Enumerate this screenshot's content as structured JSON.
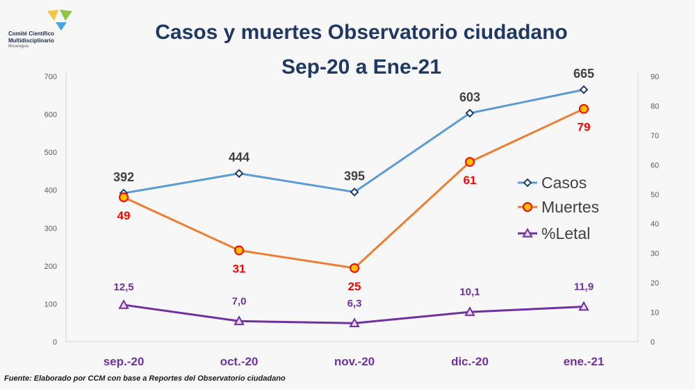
{
  "logo": {
    "line1": "Comité Científico",
    "line2": "Multidisciplinario",
    "line3": "Nicaragua"
  },
  "source_note": "Fuente:  Elaborado por CCM con base a Reportes del Observatorio ciudadano",
  "colors": {
    "casos": "#5b9bd5",
    "casos_marker": "#1f3864",
    "muertes": "#ed7d31",
    "muertes_marker_fill": "#ffc000",
    "muertes_marker_stroke": "#ff0000",
    "letal": "#7030a0",
    "muertes_label": "#ff0000",
    "letal_label": "#7030a0",
    "title": "#1f3864",
    "xtick": "#7030a0"
  },
  "chart_data": {
    "type": "line",
    "title_line1": "Casos y muertes Observatorio ciudadano",
    "title_line2": "Sep-20 a Ene-21",
    "categories": [
      "sep.-20",
      "oct.-20",
      "nov.-20",
      "dic.-20",
      "ene.-21"
    ],
    "y_left_ticks": [
      "0",
      "100",
      "200",
      "300",
      "400",
      "500",
      "600",
      "700"
    ],
    "y_right_ticks": [
      "0",
      "10",
      "20",
      "30",
      "40",
      "50",
      "60",
      "70",
      "80",
      "90"
    ],
    "ylim_left": [
      0,
      700
    ],
    "ylim_right": [
      0,
      90
    ],
    "legend_position": "right",
    "grid": false,
    "series": [
      {
        "name": "Casos",
        "axis": "left",
        "marker": "diamond",
        "values": [
          392,
          444,
          395,
          603,
          665
        ],
        "labels": [
          "392",
          "444",
          "395",
          "603",
          "665"
        ]
      },
      {
        "name": "Muertes",
        "axis": "right",
        "marker": "circle",
        "values": [
          49,
          31,
          25,
          61,
          79
        ],
        "labels": [
          "49",
          "31",
          "25",
          "61",
          "79"
        ]
      },
      {
        "name": "%Letal",
        "axis": "right",
        "marker": "triangle",
        "values": [
          12.5,
          7.0,
          6.3,
          10.1,
          11.9
        ],
        "labels": [
          "12,5",
          "7,0",
          "6,3",
          "10,1",
          "11,9"
        ]
      }
    ]
  }
}
